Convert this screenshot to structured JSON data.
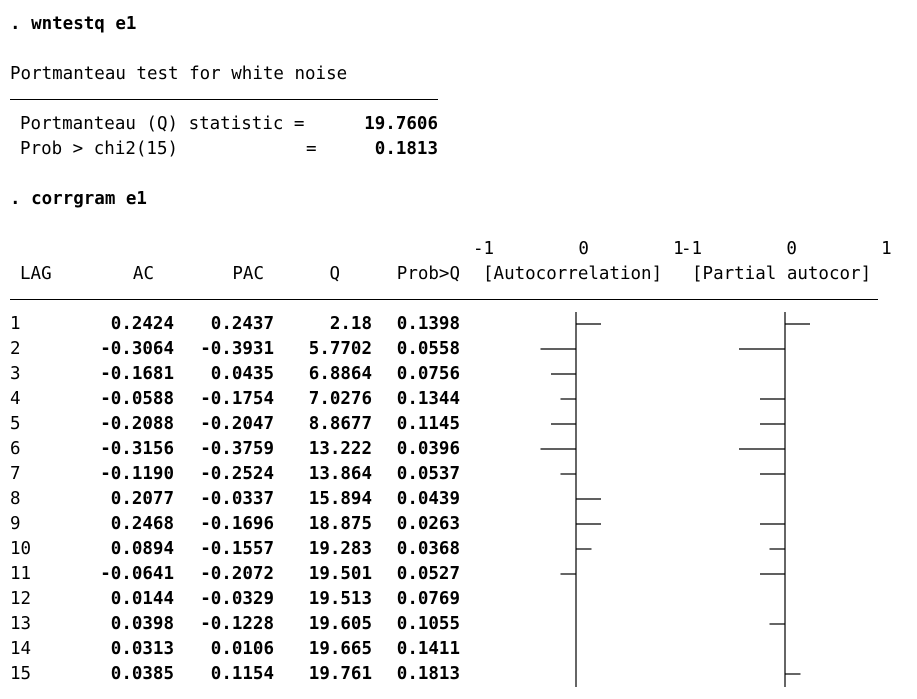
{
  "commands": {
    "wntestq": ". wntestq e1",
    "corrgram": ". corrgram e1"
  },
  "portmanteau": {
    "title": "Portmanteau test for white noise",
    "q_label": "Portmanteau (Q) statistic =",
    "q_value": "19.7606",
    "p_label": "Prob > chi2(15)",
    "p_eq": "=",
    "p_value": "0.1813"
  },
  "corrgram": {
    "scale_ac": "-1        0        1",
    "scale_pac": "-1        0        1",
    "headers": {
      "lag": "LAG",
      "ac": "AC",
      "pac": "PAC",
      "q": "Q",
      "prob": "Prob>Q",
      "autocorrelation": "[Autocorrelation]",
      "partial": "[Partial autocor]"
    },
    "rows": [
      {
        "lag": "1",
        "ac": "0.2424",
        "pac": "0.2437",
        "q": "2.18",
        "prob": "0.1398"
      },
      {
        "lag": "2",
        "ac": "-0.3064",
        "pac": "-0.3931",
        "q": "5.7702",
        "prob": "0.0558"
      },
      {
        "lag": "3",
        "ac": "-0.1681",
        "pac": "0.0435",
        "q": "6.8864",
        "prob": "0.0756"
      },
      {
        "lag": "4",
        "ac": "-0.0588",
        "pac": "-0.1754",
        "q": "7.0276",
        "prob": "0.1344"
      },
      {
        "lag": "5",
        "ac": "-0.2088",
        "pac": "-0.2047",
        "q": "8.8677",
        "prob": "0.1145"
      },
      {
        "lag": "6",
        "ac": "-0.3156",
        "pac": "-0.3759",
        "q": "13.222",
        "prob": "0.0396"
      },
      {
        "lag": "7",
        "ac": "-0.1190",
        "pac": "-0.2524",
        "q": "13.864",
        "prob": "0.0537"
      },
      {
        "lag": "8",
        "ac": "0.2077",
        "pac": "-0.0337",
        "q": "15.894",
        "prob": "0.0439"
      },
      {
        "lag": "9",
        "ac": "0.2468",
        "pac": "-0.1696",
        "q": "18.875",
        "prob": "0.0263"
      },
      {
        "lag": "10",
        "ac": "0.0894",
        "pac": "-0.1557",
        "q": "19.283",
        "prob": "0.0368"
      },
      {
        "lag": "11",
        "ac": "-0.0641",
        "pac": "-0.2072",
        "q": "19.501",
        "prob": "0.0527"
      },
      {
        "lag": "12",
        "ac": "0.0144",
        "pac": "-0.0329",
        "q": "19.513",
        "prob": "0.0769"
      },
      {
        "lag": "13",
        "ac": "0.0398",
        "pac": "-0.1228",
        "q": "19.605",
        "prob": "0.1055"
      },
      {
        "lag": "14",
        "ac": "0.0313",
        "pac": "0.0106",
        "q": "19.665",
        "prob": "0.1411"
      },
      {
        "lag": "15",
        "ac": "0.0385",
        "pac": "0.1154",
        "q": "19.761",
        "prob": "0.1813"
      }
    ]
  },
  "colors": {
    "text": "#000000",
    "background": "#ffffff"
  }
}
